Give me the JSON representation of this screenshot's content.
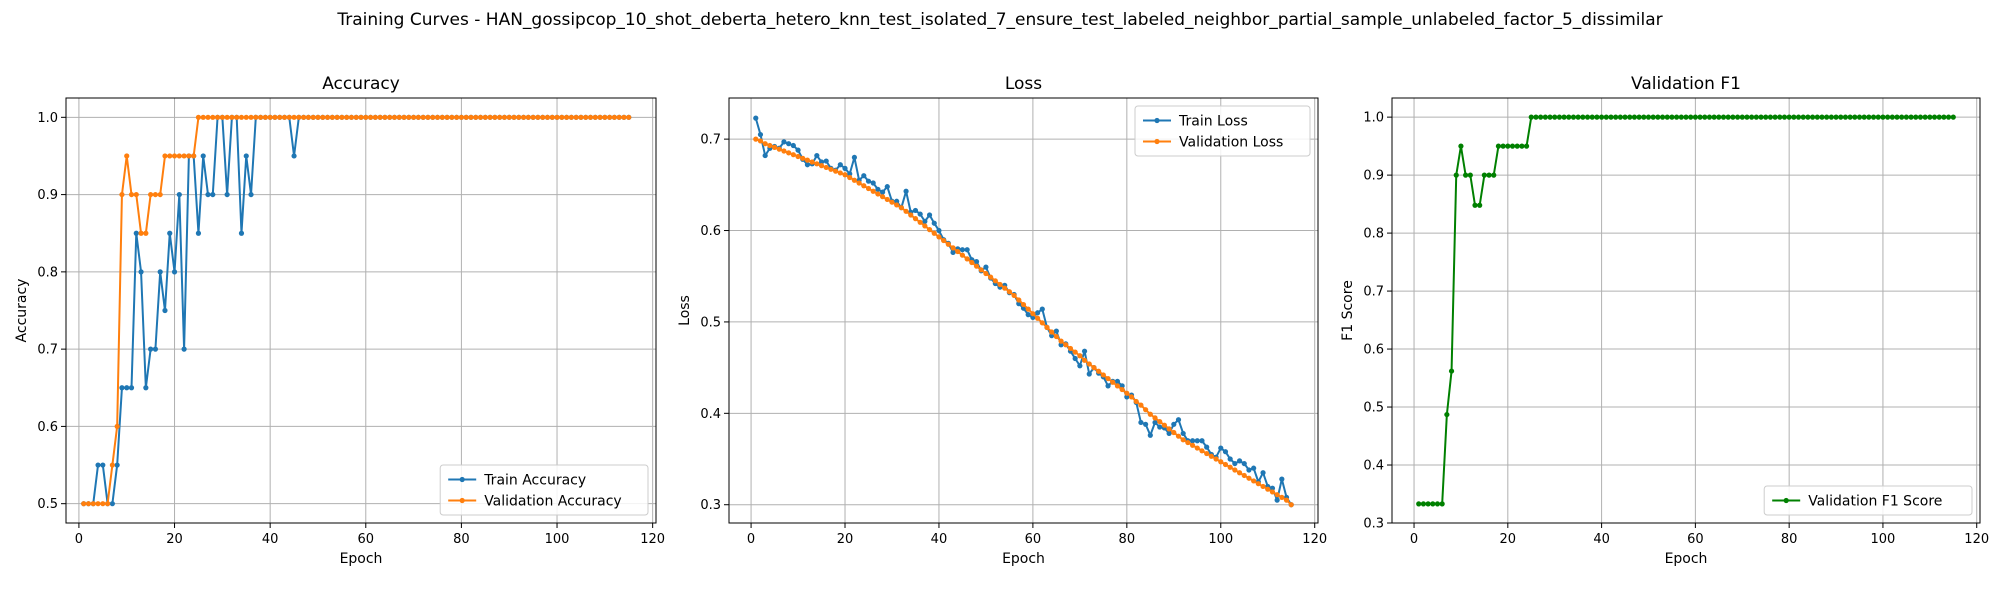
{
  "suptitle": "Training Curves - HAN_gossipcop_10_shot_deberta_hetero_knn_test_isolated_7_ensure_test_labeled_neighbor_partial_sample_unlabeled_factor_5_dissimilar",
  "colors": {
    "blue": "#1f77b4",
    "orange": "#ff7f0e",
    "green": "#008000",
    "grid": "#b0b0b0"
  },
  "chart_data": [
    {
      "type": "line",
      "title": "Accuracy",
      "xlabel": "Epoch",
      "ylabel": "Accuracy",
      "xlim": [
        -2.7,
        120.7
      ],
      "ylim": [
        0.475,
        1.025
      ],
      "xticks": [
        0,
        20,
        40,
        60,
        80,
        100,
        120
      ],
      "yticks": [
        0.5,
        0.6,
        0.7,
        0.8,
        0.9,
        1.0
      ],
      "ytick_labels": [
        "0.5",
        "0.6",
        "0.7",
        "0.8",
        "0.9",
        "1.0"
      ],
      "grid": true,
      "legend_loc": "lower-right",
      "x_start": 1,
      "series": [
        {
          "name": "Train Accuracy",
          "color": "#1f77b4",
          "values": [
            0.5,
            0.5,
            0.5,
            0.55,
            0.55,
            0.5,
            0.5,
            0.55,
            0.65,
            0.65,
            0.65,
            0.85,
            0.8,
            0.65,
            0.7,
            0.7,
            0.8,
            0.75,
            0.85,
            0.8,
            0.9,
            0.7,
            0.95,
            0.95,
            0.85,
            0.95,
            0.9,
            0.9,
            1.0,
            1.0,
            0.9,
            1.0,
            1.0,
            0.85,
            0.95,
            0.9,
            1.0,
            1.0,
            1.0,
            1.0,
            1.0,
            1.0,
            1.0,
            1.0,
            0.95,
            1.0,
            1.0,
            1.0,
            1.0,
            1.0,
            1.0,
            1.0,
            1.0,
            1.0,
            1.0,
            1.0,
            1.0,
            1.0,
            1.0,
            1.0,
            1.0,
            1.0,
            1.0,
            1.0,
            1.0,
            1.0,
            1.0,
            1.0,
            1.0,
            1.0,
            1.0,
            1.0,
            1.0,
            1.0,
            1.0,
            1.0,
            1.0,
            1.0,
            1.0,
            1.0,
            1.0,
            1.0,
            1.0,
            1.0,
            1.0,
            1.0,
            1.0,
            1.0,
            1.0,
            1.0,
            1.0,
            1.0,
            1.0,
            1.0,
            1.0,
            1.0,
            1.0,
            1.0,
            1.0,
            1.0,
            1.0,
            1.0,
            1.0,
            1.0,
            1.0,
            1.0,
            1.0,
            1.0,
            1.0,
            1.0,
            1.0,
            1.0,
            1.0,
            1.0,
            1.0
          ]
        },
        {
          "name": "Validation Accuracy",
          "color": "#ff7f0e",
          "values": [
            0.5,
            0.5,
            0.5,
            0.5,
            0.5,
            0.5,
            0.55,
            0.6,
            0.9,
            0.95,
            0.9,
            0.9,
            0.85,
            0.85,
            0.9,
            0.9,
            0.9,
            0.95,
            0.95,
            0.95,
            0.95,
            0.95,
            0.95,
            0.95,
            1.0,
            1.0,
            1.0,
            1.0,
            1.0,
            1.0,
            1.0,
            1.0,
            1.0,
            1.0,
            1.0,
            1.0,
            1.0,
            1.0,
            1.0,
            1.0,
            1.0,
            1.0,
            1.0,
            1.0,
            1.0,
            1.0,
            1.0,
            1.0,
            1.0,
            1.0,
            1.0,
            1.0,
            1.0,
            1.0,
            1.0,
            1.0,
            1.0,
            1.0,
            1.0,
            1.0,
            1.0,
            1.0,
            1.0,
            1.0,
            1.0,
            1.0,
            1.0,
            1.0,
            1.0,
            1.0,
            1.0,
            1.0,
            1.0,
            1.0,
            1.0,
            1.0,
            1.0,
            1.0,
            1.0,
            1.0,
            1.0,
            1.0,
            1.0,
            1.0,
            1.0,
            1.0,
            1.0,
            1.0,
            1.0,
            1.0,
            1.0,
            1.0,
            1.0,
            1.0,
            1.0,
            1.0,
            1.0,
            1.0,
            1.0,
            1.0,
            1.0,
            1.0,
            1.0,
            1.0,
            1.0,
            1.0,
            1.0,
            1.0,
            1.0,
            1.0,
            1.0,
            1.0,
            1.0,
            1.0,
            1.0
          ]
        }
      ]
    },
    {
      "type": "line",
      "title": "Loss",
      "xlabel": "Epoch",
      "ylabel": "Loss",
      "xlim": [
        -4.7,
        120.7
      ],
      "ylim": [
        0.28,
        0.745
      ],
      "xticks": [
        0,
        20,
        40,
        60,
        80,
        100,
        120
      ],
      "yticks": [
        0.3,
        0.4,
        0.5,
        0.6,
        0.7
      ],
      "ytick_labels": [
        "0.3",
        "0.4",
        "0.5",
        "0.6",
        "0.7"
      ],
      "grid": true,
      "legend_loc": "upper-right",
      "x_start": 1,
      "series": [
        {
          "name": "Train Loss",
          "color": "#1f77b4",
          "values": [
            0.723,
            0.705,
            0.682,
            0.69,
            0.692,
            0.69,
            0.697,
            0.695,
            0.693,
            0.688,
            0.678,
            0.672,
            0.673,
            0.682,
            0.675,
            0.676,
            0.668,
            0.666,
            0.672,
            0.668,
            0.662,
            0.68,
            0.655,
            0.66,
            0.654,
            0.652,
            0.645,
            0.642,
            0.648,
            0.632,
            0.632,
            0.625,
            0.643,
            0.62,
            0.622,
            0.618,
            0.61,
            0.617,
            0.608,
            0.6,
            0.59,
            0.586,
            0.576,
            0.58,
            0.579,
            0.579,
            0.568,
            0.566,
            0.556,
            0.56,
            0.548,
            0.542,
            0.538,
            0.54,
            0.532,
            0.53,
            0.52,
            0.515,
            0.508,
            0.505,
            0.51,
            0.514,
            0.494,
            0.485,
            0.49,
            0.475,
            0.476,
            0.468,
            0.46,
            0.452,
            0.468,
            0.443,
            0.45,
            0.444,
            0.44,
            0.43,
            0.435,
            0.435,
            0.43,
            0.418,
            0.42,
            0.412,
            0.39,
            0.388,
            0.376,
            0.39,
            0.385,
            0.384,
            0.378,
            0.388,
            0.393,
            0.378,
            0.37,
            0.37,
            0.37,
            0.37,
            0.363,
            0.355,
            0.352,
            0.362,
            0.358,
            0.35,
            0.345,
            0.348,
            0.345,
            0.338,
            0.34,
            0.325,
            0.335,
            0.32,
            0.318,
            0.305,
            0.328,
            0.308,
            0.3
          ]
        },
        {
          "name": "Validation Loss",
          "color": "#ff7f0e",
          "values": [
            0.7,
            0.698,
            0.695,
            0.693,
            0.691,
            0.689,
            0.687,
            0.685,
            0.683,
            0.681,
            0.679,
            0.677,
            0.675,
            0.673,
            0.671,
            0.669,
            0.667,
            0.665,
            0.663,
            0.661,
            0.658,
            0.655,
            0.652,
            0.649,
            0.646,
            0.643,
            0.64,
            0.637,
            0.634,
            0.631,
            0.628,
            0.625,
            0.621,
            0.617,
            0.613,
            0.609,
            0.605,
            0.601,
            0.597,
            0.593,
            0.589,
            0.585,
            0.581,
            0.577,
            0.573,
            0.569,
            0.565,
            0.561,
            0.557,
            0.553,
            0.549,
            0.545,
            0.541,
            0.537,
            0.533,
            0.529,
            0.524,
            0.519,
            0.514,
            0.509,
            0.504,
            0.499,
            0.494,
            0.489,
            0.484,
            0.479,
            0.475,
            0.471,
            0.467,
            0.463,
            0.458,
            0.454,
            0.45,
            0.446,
            0.442,
            0.438,
            0.434,
            0.43,
            0.426,
            0.422,
            0.418,
            0.413,
            0.409,
            0.404,
            0.399,
            0.395,
            0.391,
            0.387,
            0.383,
            0.379,
            0.375,
            0.371,
            0.368,
            0.365,
            0.362,
            0.359,
            0.356,
            0.353,
            0.35,
            0.347,
            0.344,
            0.341,
            0.338,
            0.335,
            0.332,
            0.329,
            0.326,
            0.323,
            0.32,
            0.317,
            0.314,
            0.311,
            0.308,
            0.305,
            0.3
          ]
        }
      ]
    },
    {
      "type": "line",
      "title": "Validation F1",
      "xlabel": "Epoch",
      "ylabel": "F1 Score",
      "xlim": [
        -4.7,
        120.7
      ],
      "ylim": [
        0.3,
        1.033
      ],
      "xticks": [
        0,
        20,
        40,
        60,
        80,
        100,
        120
      ],
      "yticks": [
        0.3,
        0.4,
        0.5,
        0.6,
        0.7,
        0.8,
        0.9,
        1.0
      ],
      "ytick_labels": [
        "0.3",
        "0.4",
        "0.5",
        "0.6",
        "0.7",
        "0.8",
        "0.9",
        "1.0"
      ],
      "grid": true,
      "legend_loc": "lower-right",
      "x_start": 1,
      "series": [
        {
          "name": "Validation F1 Score",
          "color": "#008000",
          "values": [
            0.333,
            0.333,
            0.333,
            0.333,
            0.333,
            0.333,
            0.487,
            0.562,
            0.9,
            0.95,
            0.9,
            0.9,
            0.848,
            0.848,
            0.9,
            0.9,
            0.9,
            0.95,
            0.95,
            0.95,
            0.95,
            0.95,
            0.95,
            0.95,
            1.0,
            1.0,
            1.0,
            1.0,
            1.0,
            1.0,
            1.0,
            1.0,
            1.0,
            1.0,
            1.0,
            1.0,
            1.0,
            1.0,
            1.0,
            1.0,
            1.0,
            1.0,
            1.0,
            1.0,
            1.0,
            1.0,
            1.0,
            1.0,
            1.0,
            1.0,
            1.0,
            1.0,
            1.0,
            1.0,
            1.0,
            1.0,
            1.0,
            1.0,
            1.0,
            1.0,
            1.0,
            1.0,
            1.0,
            1.0,
            1.0,
            1.0,
            1.0,
            1.0,
            1.0,
            1.0,
            1.0,
            1.0,
            1.0,
            1.0,
            1.0,
            1.0,
            1.0,
            1.0,
            1.0,
            1.0,
            1.0,
            1.0,
            1.0,
            1.0,
            1.0,
            1.0,
            1.0,
            1.0,
            1.0,
            1.0,
            1.0,
            1.0,
            1.0,
            1.0,
            1.0,
            1.0,
            1.0,
            1.0,
            1.0,
            1.0,
            1.0,
            1.0,
            1.0,
            1.0,
            1.0,
            1.0,
            1.0,
            1.0,
            1.0,
            1.0,
            1.0,
            1.0,
            1.0,
            1.0,
            1.0
          ]
        }
      ]
    }
  ]
}
